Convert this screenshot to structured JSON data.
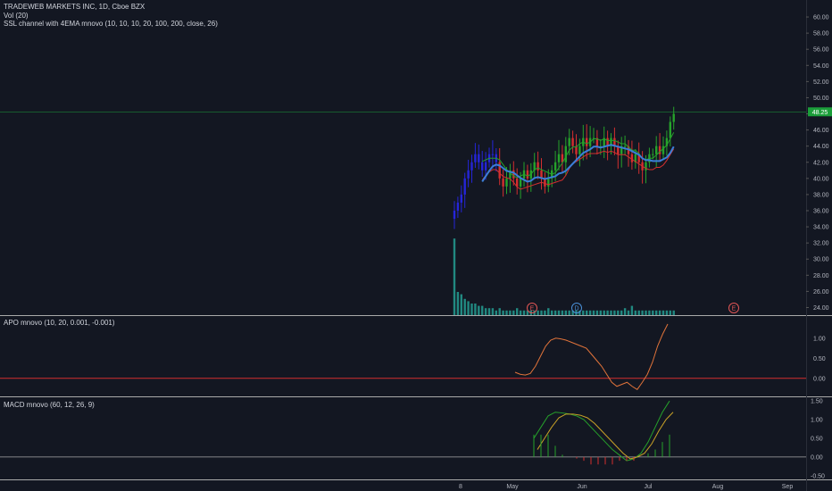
{
  "header": {
    "title": "TRADEWEB MARKETS INC, 1D, Cboe BZX",
    "vol_label": "Vol (20)",
    "ssl_label": "SSL channel with 4EMA mnovo (10, 10, 10, 20, 100, 200, close, 26)",
    "apo_label": "APO mnovo (10, 20, 0.001, -0.001)",
    "macd_label": "MACD mnovo (60, 12, 26, 9)"
  },
  "colors": {
    "background": "#131722",
    "up": "#26a22b",
    "down": "#d32f2f",
    "early": "#2525d8",
    "ssl_line": "#3a7fd9",
    "volume": "#26a69a",
    "last_price": "#1b9e3a"
  },
  "chart_data": [
    {
      "type": "candlestick",
      "pane": "price",
      "ylim": [
        23.5,
        61
      ],
      "y_ticks": [
        "60.00",
        "58.00",
        "56.00",
        "54.00",
        "52.00",
        "50.00",
        "48.00",
        "46.00",
        "44.00",
        "42.00",
        "40.00",
        "38.00",
        "36.00",
        "34.00",
        "32.00",
        "30.00",
        "28.00",
        "26.00",
        "24.00"
      ],
      "x_ticks": [
        "8",
        "May",
        "Jun",
        "Jul",
        "Aug",
        "Sep"
      ],
      "last_price": "48.25",
      "events": [
        {
          "label": "E",
          "date": "May",
          "color": "#e05555"
        },
        {
          "label": "D",
          "date": "Jun",
          "color": "#4a90d9"
        },
        {
          "label": "E",
          "date": "Aug",
          "color": "#e05555"
        }
      ],
      "series": [
        {
          "name": "close",
          "values": [
            36,
            37,
            38,
            40,
            41,
            42,
            43,
            42,
            41,
            42,
            43,
            43,
            42,
            40,
            39,
            40,
            41,
            40,
            39,
            40,
            41,
            40,
            41,
            42,
            41,
            40,
            39,
            40,
            41,
            42,
            43,
            42,
            44,
            45,
            44,
            43,
            44,
            45,
            44,
            45,
            45,
            44,
            44,
            45,
            44,
            45,
            44,
            43,
            44,
            44,
            43,
            42,
            43,
            42,
            41,
            42,
            43,
            43,
            44,
            43,
            44,
            45,
            47,
            48
          ]
        }
      ]
    },
    {
      "type": "line",
      "pane": "apo",
      "title": "APO mnovo (10, 20, 0.001, -0.001)",
      "ylim": [
        -0.45,
        1.55
      ],
      "y_ticks": [
        "1.00",
        "0.50",
        "0.00"
      ],
      "series": [
        {
          "values": [
            0.15,
            0.1,
            0.08,
            0.12,
            0.3,
            0.55,
            0.8,
            0.95,
            1.0,
            0.98,
            0.95,
            0.9,
            0.85,
            0.8,
            0.75,
            0.6,
            0.45,
            0.3,
            0.1,
            -0.1,
            -0.2,
            -0.15,
            -0.1,
            -0.2,
            -0.28,
            -0.1,
            0.1,
            0.4,
            0.8,
            1.1,
            1.35
          ]
        }
      ]
    },
    {
      "type": "bar",
      "pane": "macd",
      "title": "MACD mnovo (60, 12, 26, 9)",
      "ylim": [
        -0.6,
        1.6
      ],
      "y_ticks": [
        "1.50",
        "1.00",
        "0.50",
        "0.00",
        "-0.50"
      ],
      "series": [
        {
          "name": "macd",
          "values": [
            0.5,
            0.8,
            1.1,
            1.2,
            1.18,
            1.15,
            1.1,
            1.0,
            0.8,
            0.6,
            0.4,
            0.2,
            0.05,
            -0.1,
            -0.05,
            0.1,
            0.4,
            0.8,
            1.2,
            1.5
          ]
        },
        {
          "name": "signal",
          "values": [
            0.2,
            0.5,
            0.8,
            1.05,
            1.15,
            1.15,
            1.12,
            1.05,
            0.9,
            0.7,
            0.5,
            0.3,
            0.1,
            -0.05,
            0.0,
            0.1,
            0.35,
            0.7,
            1.0,
            1.2
          ]
        }
      ]
    }
  ]
}
